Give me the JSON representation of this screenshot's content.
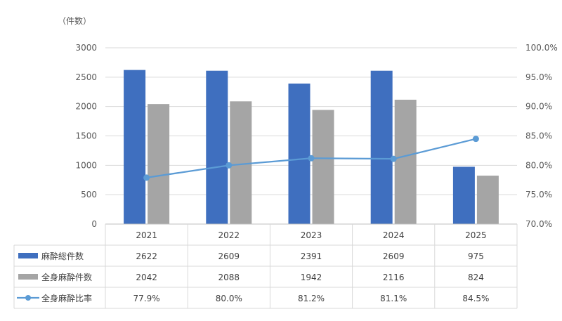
{
  "chart_data": {
    "type": "bar",
    "y_unit_label": "（件数）",
    "categories": [
      "2021",
      "2022",
      "2023",
      "2024",
      "2025"
    ],
    "y_ticks": [
      "0",
      "500",
      "1000",
      "1500",
      "2000",
      "2500",
      "3000"
    ],
    "ylim": [
      0,
      3000
    ],
    "y2_ticks": [
      "70.0%",
      "75.0%",
      "80.0%",
      "85.0%",
      "90.0%",
      "95.0%",
      "100.0%"
    ],
    "y2lim": [
      70,
      100
    ],
    "grid": true,
    "legend": "data-table",
    "series": [
      {
        "name": "麻酔総件数",
        "type": "bar",
        "axis": "left",
        "color": "#3f6fbf",
        "values": [
          2622,
          2609,
          2391,
          2609,
          975
        ],
        "labels": [
          "2622",
          "2609",
          "2391",
          "2609",
          "975"
        ]
      },
      {
        "name": "全身麻酔件数",
        "type": "bar",
        "axis": "left",
        "color": "#a5a5a5",
        "values": [
          2042,
          2088,
          1942,
          2116,
          824
        ],
        "labels": [
          "2042",
          "2088",
          "1942",
          "2116",
          "824"
        ]
      },
      {
        "name": "全身麻酔比率",
        "type": "line",
        "axis": "right",
        "color": "#5b9bd5",
        "values": [
          77.9,
          80.0,
          81.2,
          81.1,
          84.5
        ],
        "labels": [
          "77.9%",
          "80.0%",
          "81.2%",
          "81.1%",
          "84.5%"
        ]
      }
    ]
  }
}
